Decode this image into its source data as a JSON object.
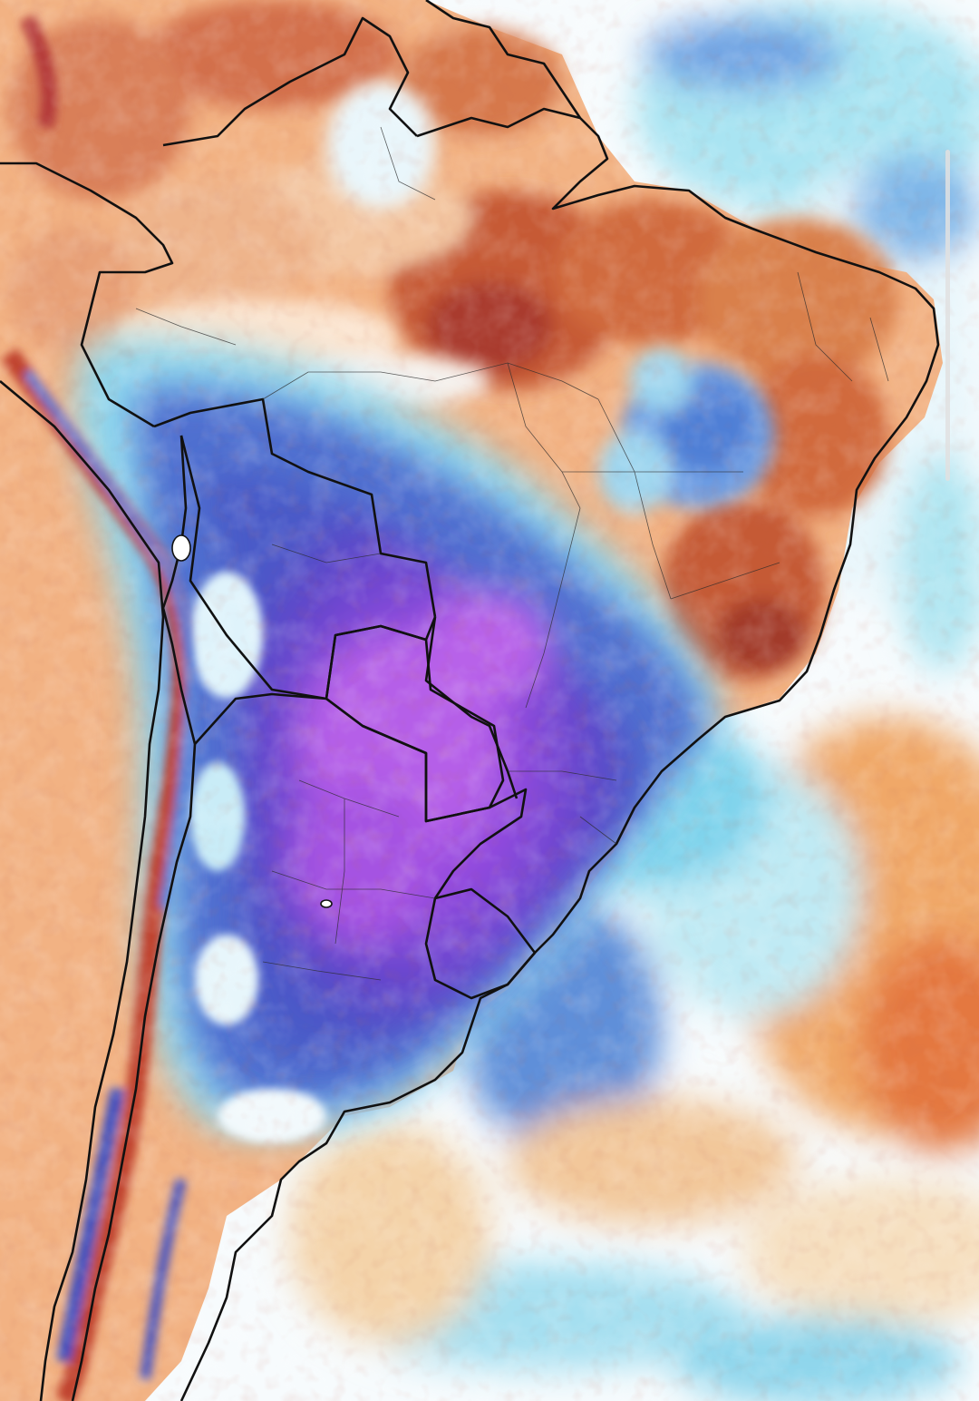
{
  "map": {
    "region": "South America",
    "layer": "temperature-anomaly",
    "palette": {
      "strong_warm": "#b8402a",
      "warm": "#e07a4a",
      "mild_warm": "#f2b68a",
      "neutral": "#fbeee2",
      "mild_cool": "#9fe3ef",
      "cool": "#5b8ed8",
      "cold": "#3f4fbf",
      "very_cold": "#7b3fd6",
      "extreme_cold": "#b25ae8",
      "borders": "#111111"
    }
  },
  "scrollbar": {
    "visible": true
  }
}
